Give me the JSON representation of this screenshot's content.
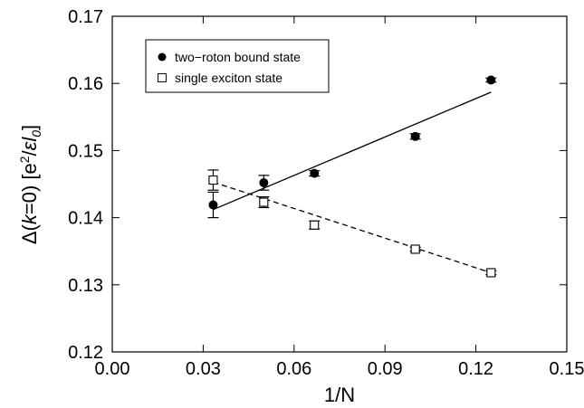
{
  "chart_data": {
    "type": "scatter",
    "xlabel": "1/N",
    "ylabel": "Δ(k=0) [e²/εl₀]",
    "xlim": [
      0.0,
      0.15
    ],
    "ylim": [
      0.12,
      0.17
    ],
    "xticks": [
      "0.00",
      "0.03",
      "0.06",
      "0.09",
      "0.12",
      "0.15"
    ],
    "yticks": [
      "0.12",
      "0.13",
      "0.14",
      "0.15",
      "0.16",
      "0.17"
    ],
    "legend_position": "top-left",
    "grid": false,
    "series": [
      {
        "name": "two−roton bound state",
        "marker": "filled-circle",
        "x": [
          0.0333,
          0.05,
          0.0667,
          0.1,
          0.125
        ],
        "y": [
          0.1419,
          0.1452,
          0.1466,
          0.1521,
          0.1605
        ],
        "err": [
          0.0019,
          0.0011,
          0.0004,
          0.0004,
          0.0003
        ],
        "fit": {
          "style": "solid",
          "x": [
            0.0333,
            0.125
          ],
          "y": [
            0.1412,
            0.1587
          ]
        }
      },
      {
        "name": "single exciton state",
        "marker": "open-square",
        "x": [
          0.0333,
          0.05,
          0.0667,
          0.1,
          0.125
        ],
        "y": [
          0.1456,
          0.1423,
          0.1389,
          0.1353,
          0.1318
        ],
        "err": [
          0.0015,
          0.0008,
          0.0006,
          0.0003,
          0.0003
        ],
        "fit": {
          "style": "dashed",
          "x": [
            0.0333,
            0.125
          ],
          "y": [
            0.1453,
            0.1318
          ]
        }
      }
    ],
    "colors": {
      "axis": "#000000",
      "marker": "#000000",
      "background": "#ffffff"
    }
  }
}
